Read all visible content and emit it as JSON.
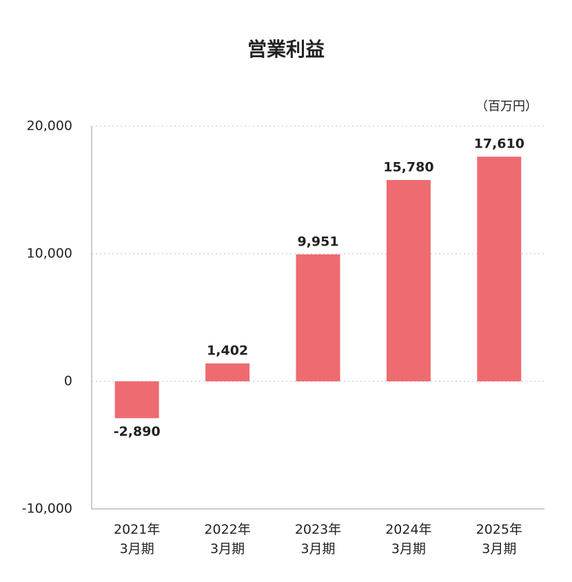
{
  "chart_data": {
    "type": "bar",
    "title": "営業利益",
    "unit_label": "（百万円）",
    "categories": [
      "2021年\n3月期",
      "2022年\n3月期",
      "2023年\n3月期",
      "2024年\n3月期",
      "2025年\n3月期"
    ],
    "values": [
      -2890,
      1402,
      9951,
      15780,
      17610
    ],
    "value_labels": [
      "-2,890",
      "1,402",
      "9,951",
      "15,780",
      "17,610"
    ],
    "color": "#ee6b71",
    "ylim": [
      -10000,
      20000
    ],
    "yticks": [
      {
        "value": -10000,
        "label": "-10,000"
      },
      0,
      {
        "value": 10000,
        "label": "10,000"
      },
      {
        "value": 20000,
        "label": "20,000"
      }
    ],
    "grid": true
  }
}
